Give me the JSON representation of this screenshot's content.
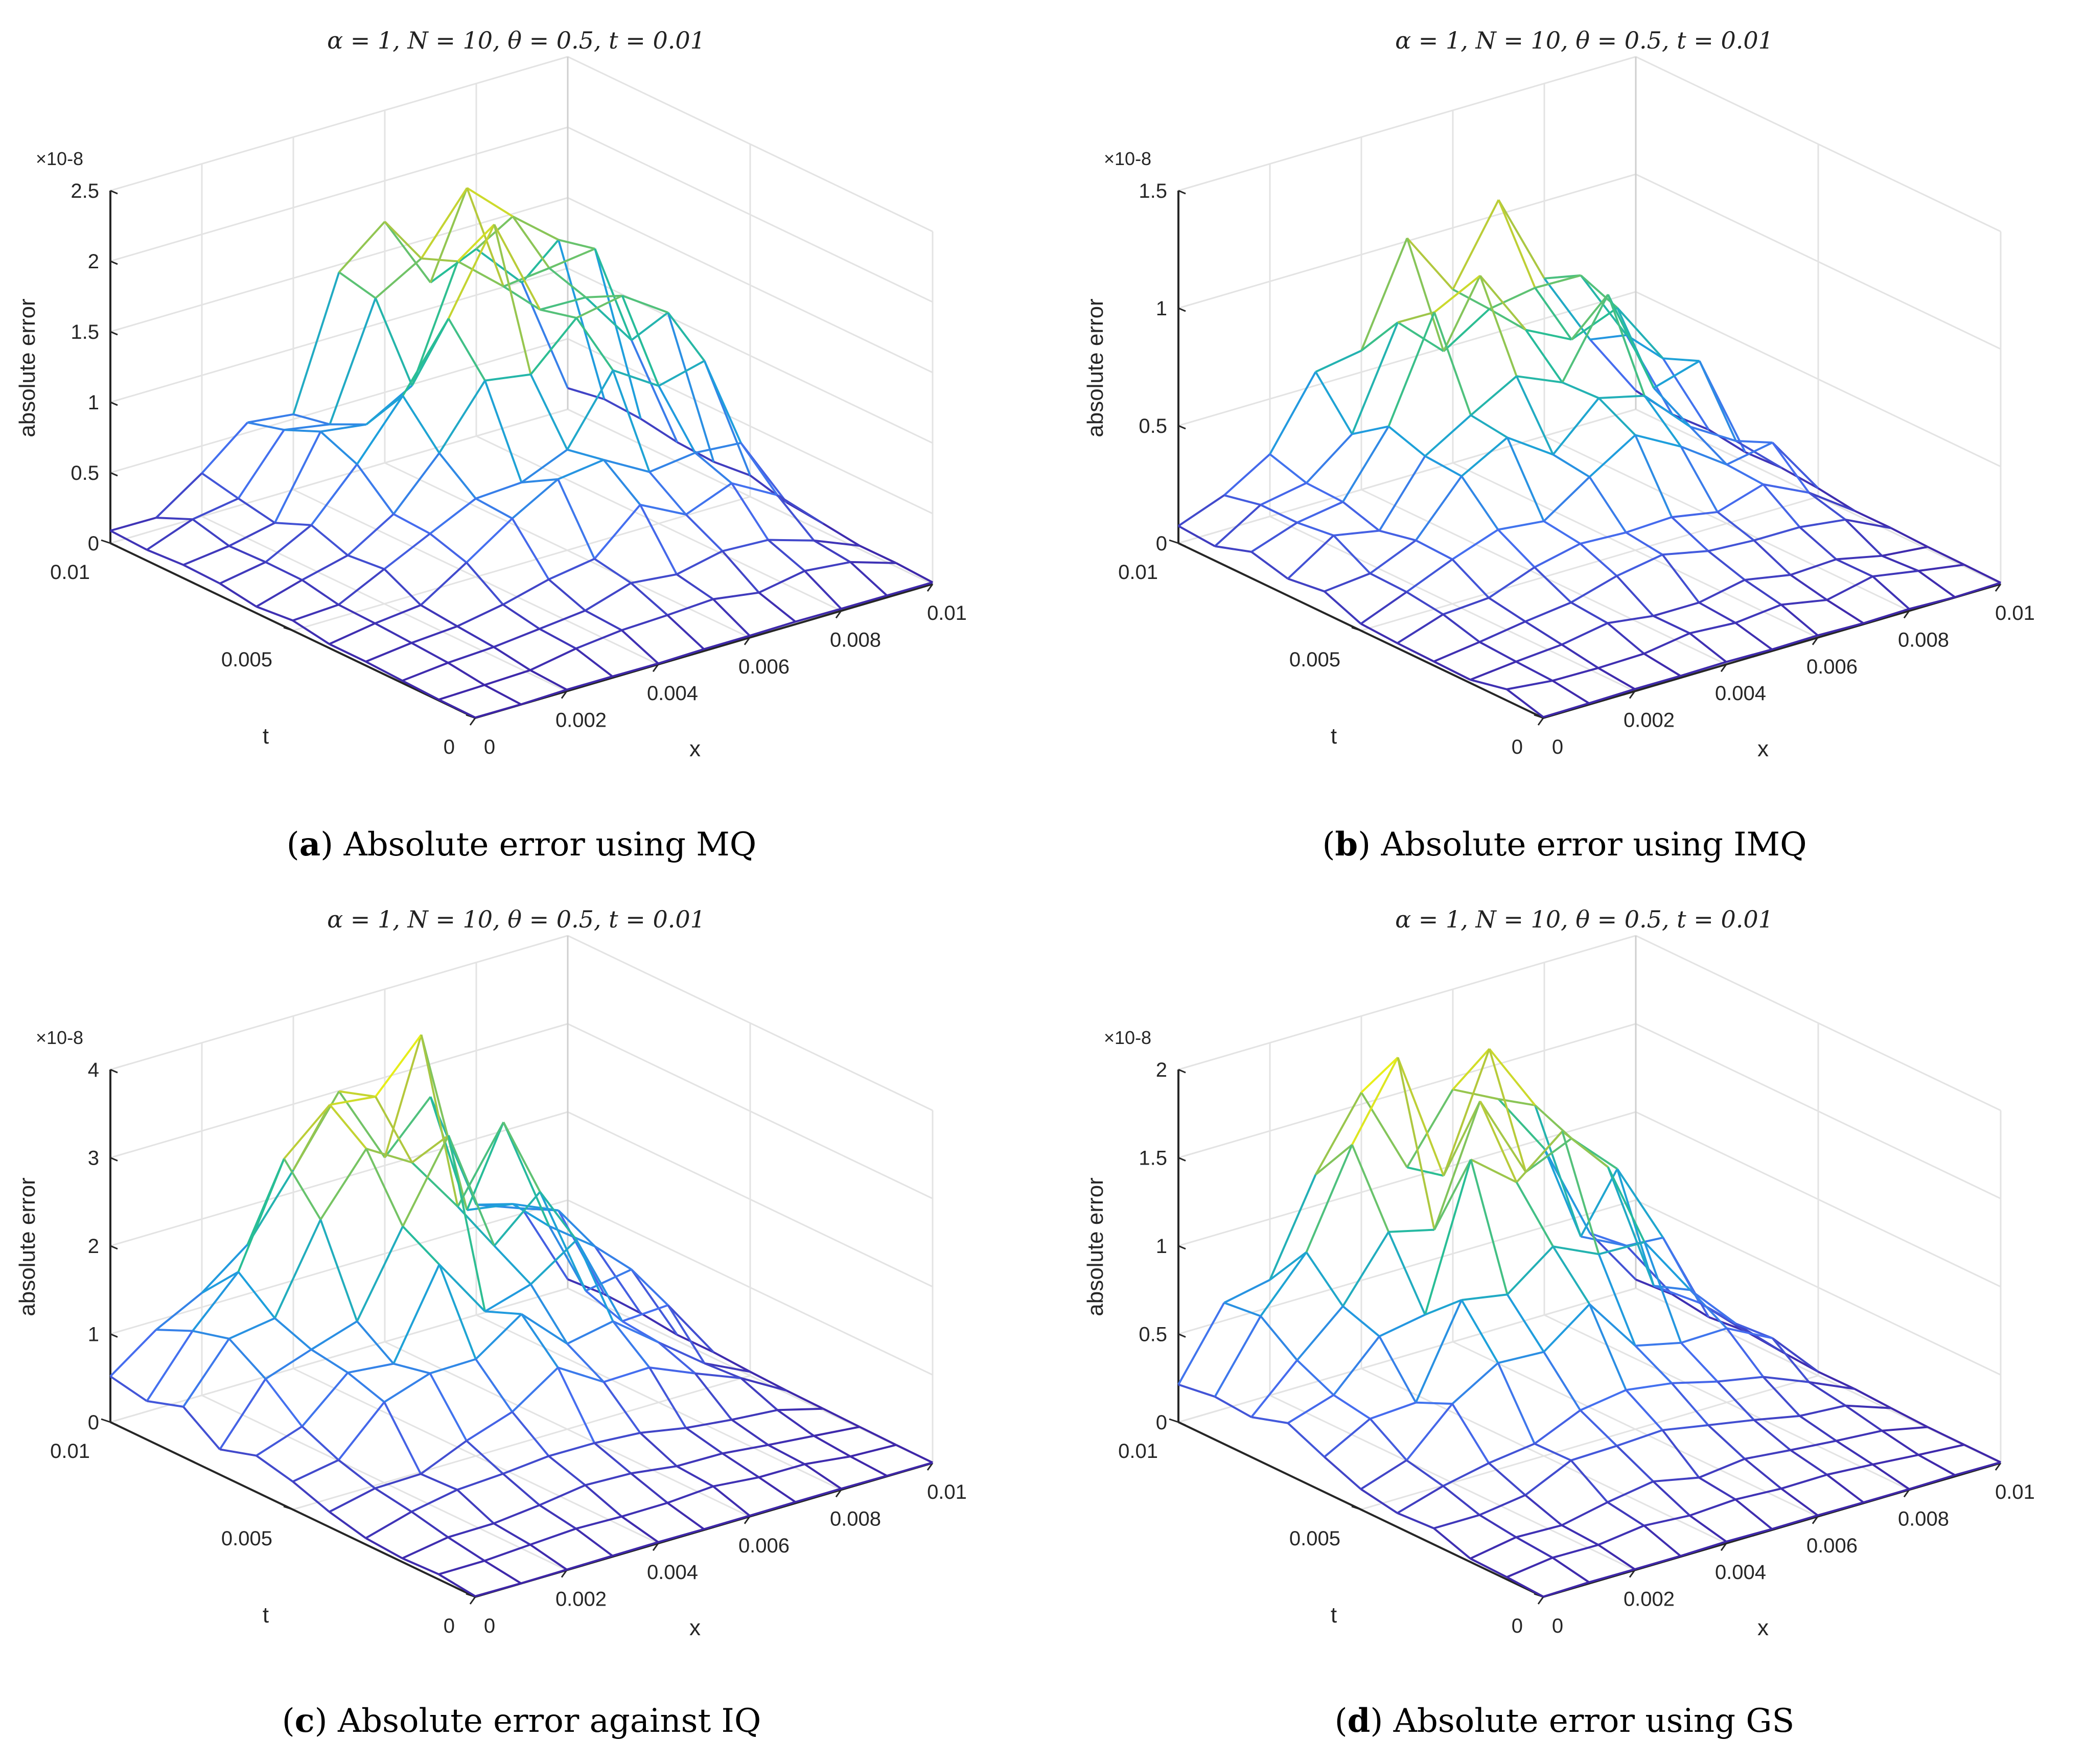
{
  "figure": {
    "panels": [
      {
        "id": "a",
        "title": "α = 1, N = 10, θ = 0.5, t = 0.01",
        "caption_letter": "a",
        "caption_text": " Absolute error using MQ"
      },
      {
        "id": "b",
        "title": "α = 1, N = 10, θ = 0.5, t = 0.01",
        "caption_letter": "b",
        "caption_text": " Absolute error using IMQ"
      },
      {
        "id": "c",
        "title": "α = 1, N = 10, θ = 0.5, t = 0.01",
        "caption_letter": "c",
        "caption_text": " Absolute error against IQ"
      },
      {
        "id": "d",
        "title": "α = 1, N = 10, θ = 0.5, t = 0.01",
        "caption_letter": "d",
        "caption_text": " Absolute error using GS"
      }
    ]
  },
  "chart_data": [
    {
      "type": "surface",
      "panel": "a",
      "title": "α = 1, N = 10, θ = 0.5, t = 0.01",
      "xlabel": "x",
      "ylabel": "t",
      "zlabel": "absolute error",
      "z_exponent": "×10^-8",
      "xlim": [
        0,
        0.01
      ],
      "ylim": [
        0,
        0.01
      ],
      "zlim": [
        0,
        2.5
      ],
      "xticks": [
        "0",
        "0.002",
        "0.004",
        "0.006",
        "0.008",
        "0.01"
      ],
      "yticks": [
        "0",
        "0.005",
        "0.01"
      ],
      "zticks": [
        "0",
        "0.5",
        "1",
        "1.5",
        "2",
        "2.5"
      ],
      "grid": true,
      "colormap": "parula",
      "peak": 2.1,
      "seed": 11,
      "peak_location": {
        "x": 0.007,
        "t": 0.008
      },
      "x": [
        0,
        0.001,
        0.002,
        0.003,
        0.004,
        0.005,
        0.006,
        0.007,
        0.008,
        0.009,
        0.01
      ],
      "t": [
        0,
        0.001,
        0.002,
        0.003,
        0.004,
        0.005,
        0.006,
        0.007,
        0.008,
        0.009,
        0.01
      ]
    },
    {
      "type": "surface",
      "panel": "b",
      "title": "α = 1, N = 10, θ = 0.5, t = 0.01",
      "xlabel": "x",
      "ylabel": "t",
      "zlabel": "absolute error",
      "z_exponent": "×10^-8",
      "xlim": [
        0,
        0.01
      ],
      "ylim": [
        0,
        0.01
      ],
      "zlim": [
        0,
        1.5
      ],
      "xticks": [
        "0",
        "0.002",
        "0.004",
        "0.006",
        "0.008",
        "0.01"
      ],
      "yticks": [
        "0",
        "0.005",
        "0.01"
      ],
      "zticks": [
        "0",
        "0.5",
        "1",
        "1.5"
      ],
      "grid": true,
      "colormap": "parula",
      "peak": 1.1,
      "seed": 23,
      "peak_location": {
        "x": 0.006,
        "t": 0.009
      },
      "x": [
        0,
        0.001,
        0.002,
        0.003,
        0.004,
        0.005,
        0.006,
        0.007,
        0.008,
        0.009,
        0.01
      ],
      "t": [
        0,
        0.001,
        0.002,
        0.003,
        0.004,
        0.005,
        0.006,
        0.007,
        0.008,
        0.009,
        0.01
      ]
    },
    {
      "type": "surface",
      "panel": "c",
      "title": "α = 1, N = 10, θ = 0.5, t = 0.01",
      "xlabel": "x",
      "ylabel": "t",
      "zlabel": "absolute error",
      "z_exponent": "×10^-8",
      "xlim": [
        0,
        0.01
      ],
      "ylim": [
        0,
        0.01
      ],
      "zlim": [
        0,
        4
      ],
      "xticks": [
        "0",
        "0.002",
        "0.004",
        "0.006",
        "0.008",
        "0.01"
      ],
      "yticks": [
        "0",
        "0.005",
        "0.01"
      ],
      "zticks": [
        "0",
        "1",
        "2",
        "3",
        "4"
      ],
      "grid": true,
      "colormap": "parula",
      "peak": 3.6,
      "seed": 37,
      "peak_location": {
        "x": 0.005,
        "t": 0.009
      },
      "x": [
        0,
        0.001,
        0.002,
        0.003,
        0.004,
        0.005,
        0.006,
        0.007,
        0.008,
        0.009,
        0.01
      ],
      "t": [
        0,
        0.001,
        0.002,
        0.003,
        0.004,
        0.005,
        0.006,
        0.007,
        0.008,
        0.009,
        0.01
      ]
    },
    {
      "type": "surface",
      "panel": "d",
      "title": "α = 1, N = 10, θ = 0.5, t = 0.01",
      "xlabel": "x",
      "ylabel": "t",
      "zlabel": "absolute error",
      "z_exponent": "×10^-8",
      "xlim": [
        0,
        0.01
      ],
      "ylim": [
        0,
        0.01
      ],
      "zlim": [
        0,
        2
      ],
      "xticks": [
        "0",
        "0.002",
        "0.004",
        "0.006",
        "0.008",
        "0.01"
      ],
      "yticks": [
        "0",
        "0.005",
        "0.01"
      ],
      "zticks": [
        "0",
        "0.5",
        "1",
        "1.5",
        "2"
      ],
      "grid": true,
      "colormap": "parula",
      "peak": 1.8,
      "seed": 53,
      "peak_location": {
        "x": 0.005,
        "t": 0.009
      },
      "x": [
        0,
        0.001,
        0.002,
        0.003,
        0.004,
        0.005,
        0.006,
        0.007,
        0.008,
        0.009,
        0.01
      ],
      "t": [
        0,
        0.001,
        0.002,
        0.003,
        0.004,
        0.005,
        0.006,
        0.007,
        0.008,
        0.009,
        0.01
      ]
    }
  ]
}
